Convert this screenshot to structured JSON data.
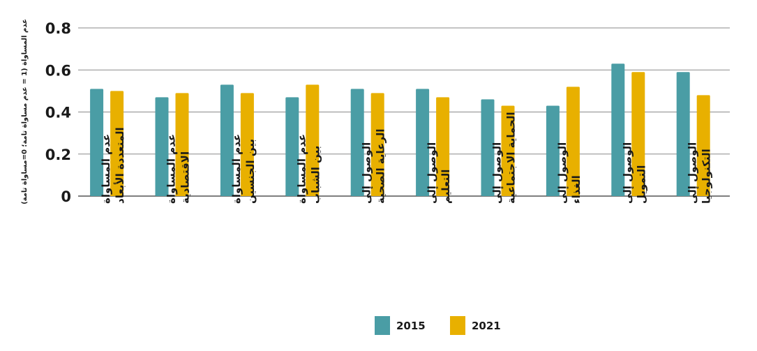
{
  "chart_data": {
    "type": "bar",
    "ylabel": "عدم المساواة (1 = عدم مساواة تامة؛ 0=مساواة تامة)",
    "ylim": [
      0,
      0.8
    ],
    "yticks": [
      "0",
      "0.2",
      "0.4",
      "0.6",
      "0.8"
    ],
    "grid": true,
    "legend_position": "bottom",
    "colors": [
      "#4a9da5",
      "#e8b000"
    ],
    "categories": [
      [
        "عدم المساواة",
        "المتعددة الأبعاد"
      ],
      [
        "عدم المساواة",
        "الاقتصادية"
      ],
      [
        "عدم المساواة",
        "بين الجنسين"
      ],
      [
        "عدم المساواة",
        "بين الشباب"
      ],
      [
        "الوصول إلى",
        "الرعاية الصحية"
      ],
      [
        "الوصول إلى",
        "التعليم"
      ],
      [
        "الوصول إلى",
        "الحماية الاجتماعية"
      ],
      [
        "الوصول إلى",
        "الغذاء"
      ],
      [
        "الوصول إلى",
        "التمويل"
      ],
      [
        "الوصول إلى",
        "التكنولوجيا"
      ]
    ],
    "series": [
      {
        "name": "2015",
        "values": [
          0.51,
          0.47,
          0.53,
          0.47,
          0.51,
          0.51,
          0.46,
          0.43,
          0.63,
          0.59
        ]
      },
      {
        "name": "2021",
        "values": [
          0.5,
          0.49,
          0.49,
          0.53,
          0.49,
          0.47,
          0.43,
          0.52,
          0.59,
          0.48
        ]
      }
    ]
  }
}
